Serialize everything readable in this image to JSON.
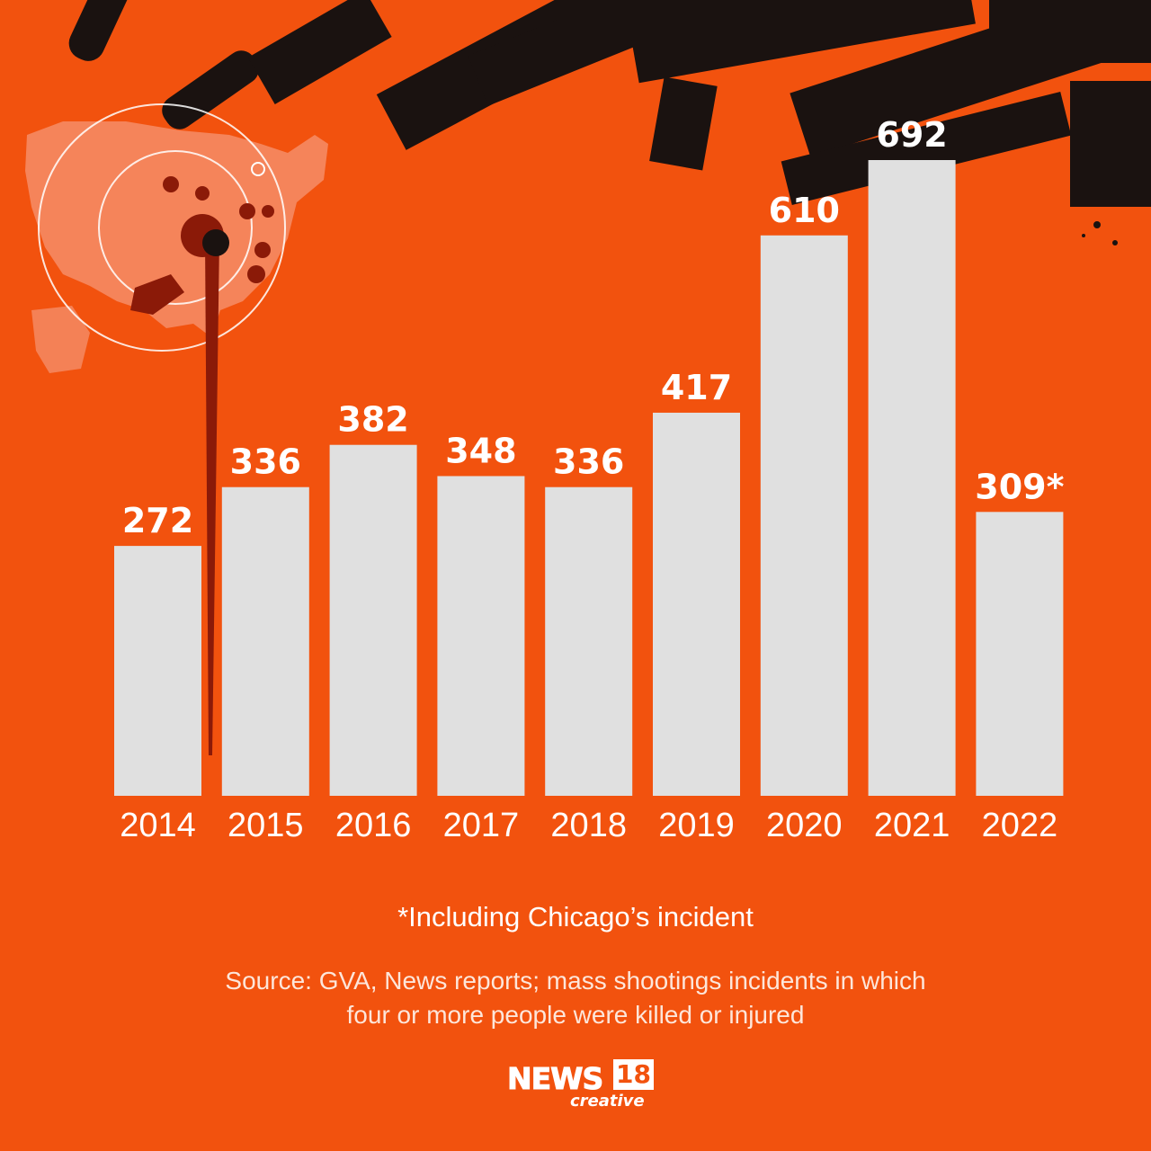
{
  "chart_data": {
    "type": "bar",
    "categories": [
      "2014",
      "2015",
      "2016",
      "2017",
      "2018",
      "2019",
      "2020",
      "2021",
      "2022"
    ],
    "values": [
      272,
      336,
      382,
      348,
      336,
      417,
      610,
      692,
      309
    ],
    "data_labels": [
      "272",
      "336",
      "382",
      "348",
      "336",
      "417",
      "610",
      "692",
      "309*"
    ],
    "title": "",
    "xlabel": "",
    "ylabel": "",
    "ylim": [
      0,
      692
    ],
    "grid": false,
    "bar_color": "#e0e0e0",
    "label_color": "#ffffff"
  },
  "footnote": "*Including Chicago’s incident",
  "source_line1": "Source: GVA, News reports; mass shootings incidents in which",
  "source_line2": "four or more people were killed or injured",
  "logo": {
    "word": "NEWS",
    "number": "18",
    "sub": "creative"
  },
  "colors": {
    "background": "#f2520e",
    "dark_art": "#1a1210",
    "blood": "#8b1a08"
  }
}
